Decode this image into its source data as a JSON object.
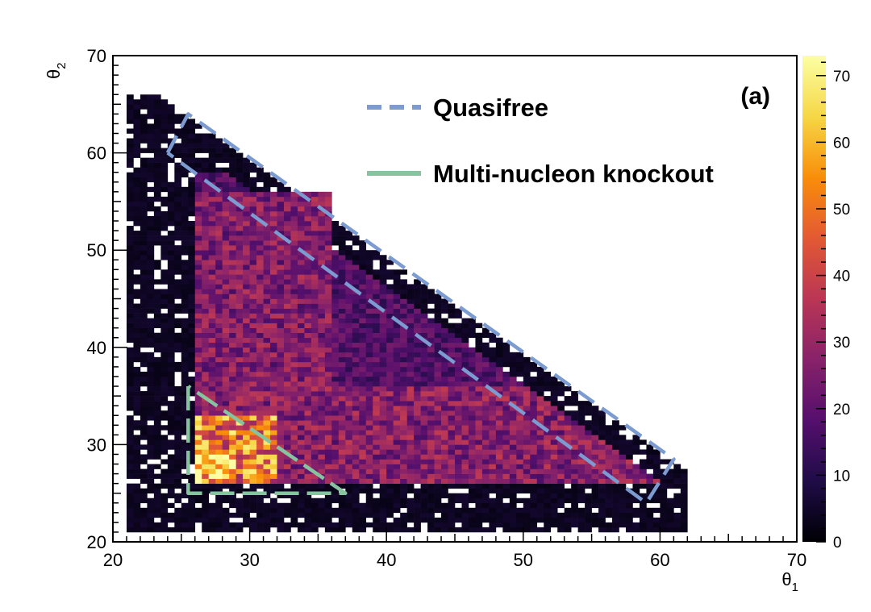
{
  "chart_data": {
    "type": "heatmap",
    "panel_label": "(a)",
    "xlabel": "θ1",
    "ylabel": "θ2",
    "xlim": [
      20,
      70
    ],
    "ylim": [
      20,
      70
    ],
    "x_ticks": [
      20,
      30,
      40,
      50,
      60,
      70
    ],
    "y_ticks": [
      20,
      30,
      40,
      50,
      60,
      70
    ],
    "colorbar": {
      "range": [
        0,
        73
      ],
      "ticks": [
        0,
        10,
        20,
        30,
        40,
        50,
        60,
        70
      ],
      "colormap": "inferno",
      "stops": [
        "#000004",
        "#1f0c48",
        "#550f6d",
        "#88226a",
        "#ba3655",
        "#e35933",
        "#f98e09",
        "#f6d746",
        "#fcffa4"
      ]
    },
    "density_regions": [
      {
        "region": "background",
        "x_range": [
          21,
          62
        ],
        "y_range": [
          21,
          66
        ],
        "bound": "x + y <= 89",
        "level": 4
      },
      {
        "region": "central",
        "x_range": [
          26,
          60
        ],
        "y_range": [
          26,
          58
        ],
        "bound": "x + y <= 86",
        "level": 18
      },
      {
        "region": "upper-left",
        "x_range": [
          26,
          36
        ],
        "y_range": [
          36,
          56
        ],
        "level": 26
      },
      {
        "region": "lower-band",
        "x_range": [
          26,
          60
        ],
        "y_range": [
          26,
          36
        ],
        "bound": "x + y <= 86",
        "level": 27
      },
      {
        "region": "hot-corner",
        "x_range": [
          26,
          32
        ],
        "y_range": [
          26,
          33
        ],
        "level": 50
      },
      {
        "region": "peak",
        "x_range": [
          26,
          29
        ],
        "y_range": [
          26,
          29
        ],
        "level": 68
      }
    ],
    "series": [
      {
        "name": "Quasifree",
        "color": "#7b9bd1",
        "style": "dashed",
        "x": [
          24,
          25.5,
          61,
          59,
          24
        ],
        "y": [
          60,
          64,
          28.5,
          24,
          60
        ]
      },
      {
        "name": "Multi-nucleon knockout",
        "color": "#86c4a0",
        "style": "solid-dashed",
        "x": [
          25.5,
          25.5,
          37,
          25.5
        ],
        "y": [
          36,
          25,
          25,
          36
        ]
      }
    ],
    "legend_position": "top"
  }
}
